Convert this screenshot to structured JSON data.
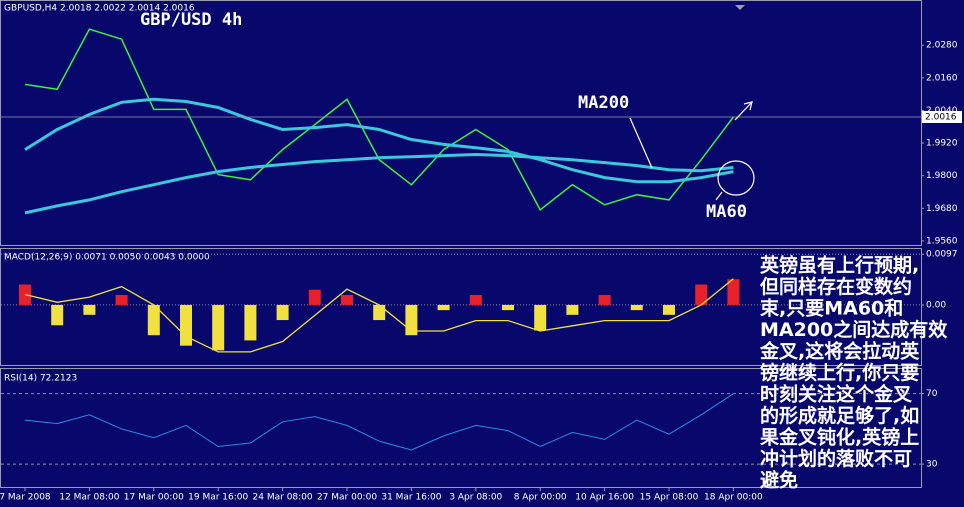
{
  "header": "GBPUSD,H4  2.0018 2.0022 2.0014 2.0016",
  "annotations": {
    "ma200": "MA200",
    "ma60": "MA60",
    "note": [
      "英镑虽有上行预期,",
      "但同样存在变数约",
      "束,只要MA60和",
      "MA200之间达成有效",
      "金叉,这将会拉动英",
      "镑继续上行,你只要",
      "时刻关注这个金叉",
      "的形成就足够了,如",
      "果金叉钝化,英镑上",
      "冲计划的落败不可",
      "避免"
    ]
  },
  "chart_data": [
    {
      "type": "line",
      "title": "GBP/USD 4h",
      "categories": [
        "7 Mar 2008",
        null,
        "12 Mar 08:00",
        null,
        "17 Mar 00:00",
        null,
        "19 Mar 16:00",
        null,
        "24 Mar 08:00",
        null,
        "27 Mar 00:00",
        null,
        "31 Mar 16:00",
        null,
        "3 Apr 08:00",
        null,
        "8 Apr 00:00",
        null,
        "10 Apr 16:00",
        null,
        "15 Apr 08:00",
        null,
        "18 Apr 00:00"
      ],
      "series": [
        {
          "name": "GBPUSD",
          "color": "#3cf03c",
          "width": 1.5,
          "values": [
            2.0136,
            2.0118,
            2.0339,
            2.0302,
            2.0044,
            2.0044,
            1.9804,
            1.9785,
            1.9896,
            1.9988,
            2.0081,
            1.9859,
            1.9767,
            1.9896,
            1.997,
            1.9896,
            1.9674,
            1.9767,
            1.9693,
            1.973,
            1.9711,
            1.9859,
            2.0016
          ]
        },
        {
          "name": "MA60",
          "color": "#3cc8dc",
          "width": 3,
          "values": [
            1.9896,
            1.997,
            2.0025,
            2.007,
            2.0081,
            2.0073,
            2.0051,
            2.0007,
            1.997,
            1.9977,
            1.9988,
            1.997,
            1.9933,
            1.9915,
            1.9903,
            1.9889,
            1.9859,
            1.9822,
            1.9793,
            1.9778,
            1.9778,
            1.9793,
            1.9815
          ]
        },
        {
          "name": "MA200",
          "color": "#3cc8dc",
          "width": 3,
          "values": [
            1.9663,
            1.9689,
            1.9711,
            1.9741,
            1.9767,
            1.9793,
            1.9815,
            1.983,
            1.9841,
            1.9852,
            1.9859,
            1.9866,
            1.987,
            1.9874,
            1.9878,
            1.9874,
            1.9866,
            1.9859,
            1.9848,
            1.9837,
            1.9822,
            1.9818,
            1.983
          ]
        }
      ],
      "ylim": [
        1.9545,
        2.0439
      ],
      "yticks": [
        {
          "value": 2.028,
          "label": "2.0280"
        },
        {
          "value": 2.016,
          "label": "2.0160"
        },
        {
          "value": 2.004,
          "label": "2.0040"
        },
        {
          "value": 1.992,
          "label": "1.9920"
        },
        {
          "value": 1.98,
          "label": "1.9800"
        },
        {
          "value": 1.968,
          "label": "1.9680"
        },
        {
          "value": 1.956,
          "label": "1.9560"
        }
      ],
      "last_price": {
        "value": 2.0016,
        "label": "2.0016"
      }
    },
    {
      "type": "bar",
      "title": "MACD(12,26,9) 0.0071 0.0050 0.0043 0.0000",
      "series": [
        {
          "name": "MACD",
          "type": "bar",
          "color": "#e8202a",
          "negative_color": "#f0e040",
          "values": [
            0.0039,
            -0.0039,
            -0.0019,
            0.0019,
            -0.0058,
            -0.0078,
            -0.0087,
            -0.0068,
            -0.0029,
            0.0029,
            0.0019,
            -0.0029,
            -0.0058,
            -0.001,
            0.0019,
            -0.001,
            -0.0049,
            -0.0019,
            0.0019,
            -0.001,
            -0.0019,
            0.0039,
            0.0049
          ]
        },
        {
          "name": "Signal",
          "type": "line",
          "color": "#f0e040",
          "values": [
            0.002,
            0.0005,
            0.0015,
            0.0035,
            0.0,
            -0.006,
            -0.009,
            -0.009,
            -0.007,
            -0.002,
            0.003,
            0.0,
            -0.005,
            -0.005,
            -0.003,
            -0.003,
            -0.005,
            -0.004,
            -0.003,
            -0.003,
            -0.003,
            0.0,
            0.005
          ]
        }
      ],
      "ylim": [
        -0.0115,
        0.0107
      ],
      "yticks": [
        0.0097,
        {
          "value": 0,
          "label": "0.00"
        }
      ]
    },
    {
      "type": "line",
      "title": "RSI(14) 72.2123",
      "series": [
        {
          "name": "RSI",
          "color": "#2a8ae8",
          "width": 1,
          "values": [
            55,
            53,
            58,
            50,
            45,
            52,
            40,
            42,
            54,
            57,
            52,
            43,
            38,
            46,
            52,
            49,
            40,
            48,
            44,
            55,
            47,
            58,
            70
          ]
        }
      ],
      "ylim": [
        17,
        84
      ],
      "yticks": [
        70,
        30
      ],
      "grid_dashed": true
    }
  ]
}
